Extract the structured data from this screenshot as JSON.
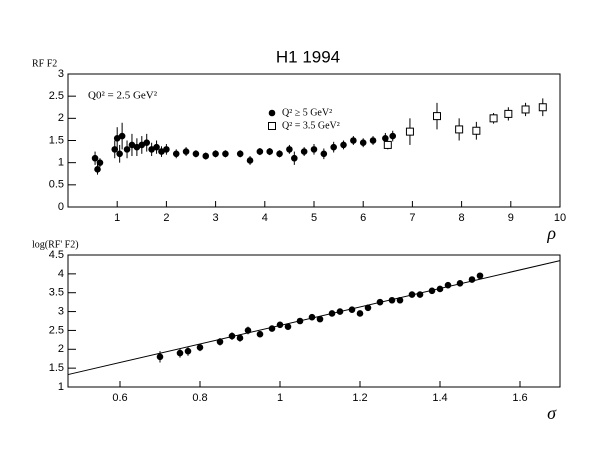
{
  "chart_data": [
    {
      "type": "scatter",
      "title": "H1 1994",
      "x_label": "ρ",
      "y_label": "RF F2",
      "annotation": "Q0² = 2.5 GeV²",
      "legend": "top-center",
      "xlim": [
        0,
        10
      ],
      "xticks": [
        1,
        2,
        3,
        4,
        5,
        6,
        7,
        8,
        9,
        10
      ],
      "ylim": [
        0,
        3
      ],
      "yticks": [
        0,
        0.5,
        1,
        1.5,
        2,
        2.5,
        3
      ],
      "series": [
        {
          "name": "Q² ≥ 5 GeV²",
          "marker": "circle",
          "filled": true,
          "color": "#000000",
          "x": [
            0.55,
            0.6,
            0.65,
            0.95,
            1.0,
            1.05,
            1.1,
            1.2,
            1.3,
            1.4,
            1.5,
            1.6,
            1.7,
            1.8,
            1.9,
            2.0,
            2.2,
            2.4,
            2.6,
            2.8,
            3.0,
            3.2,
            3.5,
            3.7,
            3.9,
            4.1,
            4.3,
            4.5,
            4.6,
            4.8,
            5.0,
            5.2,
            5.4,
            5.6,
            5.8,
            6.0,
            6.2,
            6.45,
            6.6
          ],
          "values": [
            1.1,
            0.85,
            1.0,
            1.3,
            1.55,
            1.2,
            1.6,
            1.3,
            1.4,
            1.35,
            1.4,
            1.45,
            1.3,
            1.35,
            1.25,
            1.3,
            1.2,
            1.25,
            1.2,
            1.15,
            1.2,
            1.2,
            1.2,
            1.05,
            1.25,
            1.25,
            1.2,
            1.3,
            1.1,
            1.25,
            1.3,
            1.2,
            1.35,
            1.4,
            1.5,
            1.45,
            1.5,
            1.55,
            1.6
          ],
          "errors": [
            0.15,
            0.12,
            0.1,
            0.2,
            0.25,
            0.2,
            0.3,
            0.2,
            0.25,
            0.2,
            0.2,
            0.2,
            0.15,
            0.15,
            0.12,
            0.12,
            0.1,
            0.1,
            0.08,
            0.08,
            0.08,
            0.08,
            0.08,
            0.1,
            0.08,
            0.08,
            0.08,
            0.1,
            0.15,
            0.1,
            0.12,
            0.12,
            0.12,
            0.1,
            0.1,
            0.1,
            0.1,
            0.12,
            0.12
          ]
        },
        {
          "name": "Q² = 3.5 GeV²",
          "marker": "square",
          "filled": false,
          "color": "#000000",
          "x": [
            6.5,
            6.95,
            7.5,
            7.95,
            8.3,
            8.65,
            8.95,
            9.3,
            9.65
          ],
          "values": [
            1.4,
            1.7,
            2.05,
            1.75,
            1.72,
            2.0,
            2.1,
            2.2,
            2.25
          ],
          "errors": [
            0.1,
            0.3,
            0.3,
            0.25,
            0.2,
            0.12,
            0.15,
            0.15,
            0.2
          ]
        }
      ]
    },
    {
      "type": "scatter",
      "x_label": "σ",
      "y_label": "log(RF' F2)",
      "xlim": [
        0.47,
        1.7
      ],
      "xticks": [
        0.6,
        0.8,
        1,
        1.2,
        1.4,
        1.6
      ],
      "ylim": [
        1,
        4.5
      ],
      "yticks": [
        1,
        1.5,
        2,
        2.5,
        3,
        3.5,
        4,
        4.5
      ],
      "fit": {
        "x": [
          0.47,
          1.7
        ],
        "values": [
          1.33,
          4.35
        ]
      },
      "series": [
        {
          "marker": "circle",
          "filled": true,
          "color": "#000000",
          "x": [
            0.7,
            0.75,
            0.77,
            0.8,
            0.85,
            0.88,
            0.9,
            0.92,
            0.95,
            0.98,
            1.0,
            1.02,
            1.05,
            1.08,
            1.1,
            1.13,
            1.15,
            1.18,
            1.2,
            1.22,
            1.25,
            1.28,
            1.3,
            1.33,
            1.35,
            1.38,
            1.4,
            1.42,
            1.45,
            1.48,
            1.5
          ],
          "values": [
            1.8,
            1.9,
            1.95,
            2.05,
            2.2,
            2.35,
            2.3,
            2.5,
            2.4,
            2.55,
            2.65,
            2.6,
            2.75,
            2.85,
            2.8,
            2.95,
            3.0,
            3.05,
            2.95,
            3.1,
            3.25,
            3.3,
            3.3,
            3.45,
            3.45,
            3.55,
            3.6,
            3.7,
            3.75,
            3.85,
            3.95
          ],
          "errors": [
            0.15,
            0.12,
            0.12,
            0.1,
            0.1,
            0.1,
            0.1,
            0.1,
            0.08,
            0.08,
            0.08,
            0.08,
            0.08,
            0.08,
            0.08,
            0.08,
            0.08,
            0.08,
            0.08,
            0.08,
            0.08,
            0.08,
            0.08,
            0.08,
            0.08,
            0.08,
            0.08,
            0.08,
            0.08,
            0.08,
            0.08
          ]
        }
      ]
    }
  ]
}
